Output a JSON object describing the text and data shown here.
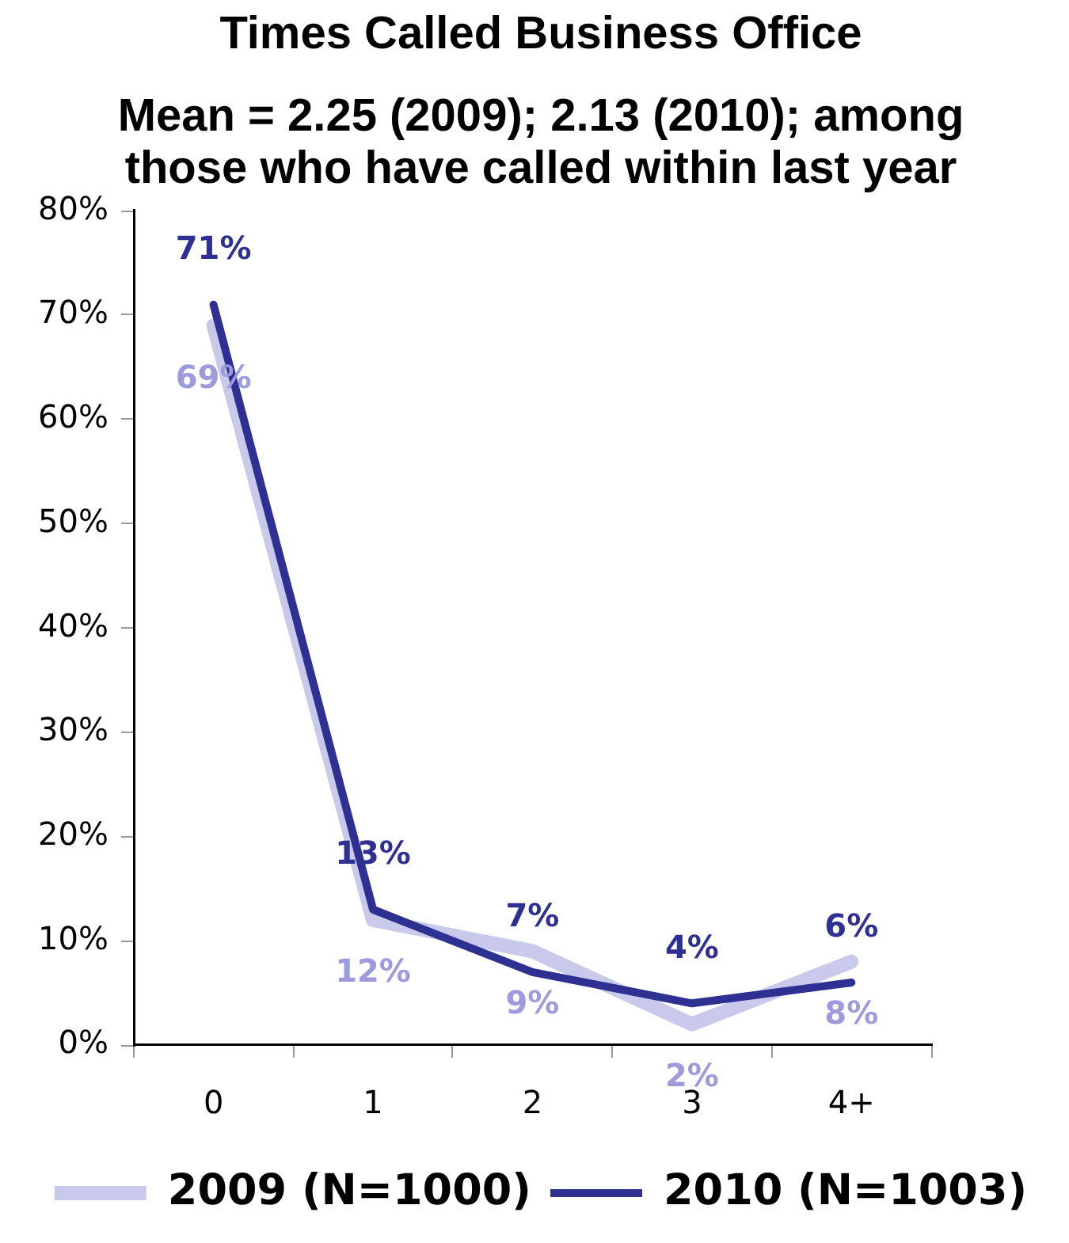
{
  "chart_data": {
    "type": "line",
    "title": "Times Called Business Office",
    "subtitle": "Mean = 2.25 (2009); 2.13 (2010); among those who have called within last year",
    "categories": [
      "0",
      "1",
      "2",
      "3",
      "4+"
    ],
    "series": [
      {
        "name": "2009 (N=1000)",
        "color": "#c9c9ec",
        "values": [
          69,
          12,
          9,
          2,
          8
        ],
        "value_labels": [
          "69%",
          "12%",
          "9%",
          "2%",
          "8%"
        ]
      },
      {
        "name": "2010 (N=1003)",
        "color": "#2e3192",
        "values": [
          71,
          13,
          7,
          4,
          6
        ],
        "value_labels": [
          "71%",
          "13%",
          "7%",
          "4%",
          "6%"
        ]
      }
    ],
    "ylim": [
      0,
      80
    ],
    "yticks": [
      {
        "value": 0,
        "label": "0%"
      },
      {
        "value": 10,
        "label": "10%"
      },
      {
        "value": 20,
        "label": "20%"
      },
      {
        "value": 30,
        "label": "30%"
      },
      {
        "value": 40,
        "label": "40%"
      },
      {
        "value": 50,
        "label": "50%"
      },
      {
        "value": 60,
        "label": "60%"
      },
      {
        "value": 70,
        "label": "70%"
      },
      {
        "value": 80,
        "label": "80%"
      }
    ],
    "legend": "bottom",
    "marker": "none",
    "line_style": "solid"
  }
}
